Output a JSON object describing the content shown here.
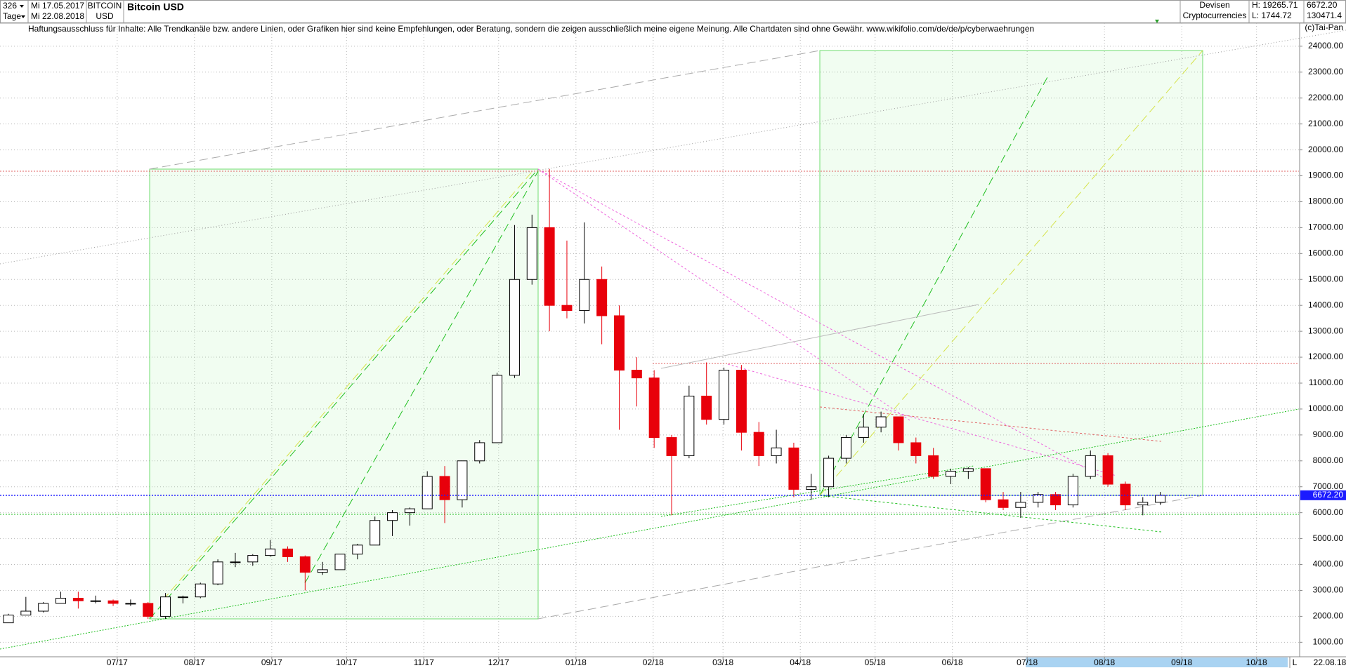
{
  "header": {
    "period": "326",
    "unit": "Tage",
    "date_from": "Mi 17.05.2017",
    "date_to": "Mi 22.08.2018",
    "symbol": "BITCOIN",
    "currency": "USD",
    "market": "Devisen",
    "group": "Cryptocurrencies",
    "high": "H: 19265.71",
    "low": "L: 1744.72",
    "volume": "130471.4",
    "disclaimer": "Haftungsausschluss für Inhalte: Alle Trendkanäle bzw. andere Linien, oder Grafiken hier sind keine Empfehlungen, oder Beratung, sondern die zeigen ausschließlich meine eigene Meinung. Alle Chartdaten sind ohne Gewähr.  www.wikifolio.com/de/de/p/cyberwaehrungen",
    "copyright": "(c)Tai-Pan",
    "end_date": "22.08.18",
    "scale_mode": "L"
  },
  "chart_data": {
    "type": "candlestick",
    "title": "Bitcoin USD",
    "x": [
      "2017-05-15",
      "2017-05-22",
      "2017-05-29",
      "2017-06-05",
      "2017-06-12",
      "2017-06-19",
      "2017-06-26",
      "2017-07-03",
      "2017-07-10",
      "2017-07-17",
      "2017-07-24",
      "2017-07-31",
      "2017-08-07",
      "2017-08-14",
      "2017-08-21",
      "2017-08-28",
      "2017-09-04",
      "2017-09-11",
      "2017-09-18",
      "2017-09-25",
      "2017-10-02",
      "2017-10-09",
      "2017-10-16",
      "2017-10-23",
      "2017-10-30",
      "2017-11-06",
      "2017-11-13",
      "2017-11-20",
      "2017-11-27",
      "2017-12-04",
      "2017-12-11",
      "2017-12-18",
      "2017-12-25",
      "2018-01-01",
      "2018-01-08",
      "2018-01-15",
      "2018-01-22",
      "2018-01-29",
      "2018-02-05",
      "2018-02-12",
      "2018-02-19",
      "2018-02-26",
      "2018-03-05",
      "2018-03-12",
      "2018-03-19",
      "2018-03-26",
      "2018-04-02",
      "2018-04-09",
      "2018-04-16",
      "2018-04-23",
      "2018-04-30",
      "2018-05-07",
      "2018-05-14",
      "2018-05-21",
      "2018-05-28",
      "2018-06-04",
      "2018-06-11",
      "2018-06-18",
      "2018-06-25",
      "2018-07-02",
      "2018-07-09",
      "2018-07-16",
      "2018-07-23",
      "2018-07-30",
      "2018-08-06",
      "2018-08-13",
      "2018-08-20"
    ],
    "open": [
      1750,
      2050,
      2200,
      2500,
      2700,
      2600,
      2600,
      2500,
      2500,
      2000,
      2750,
      2750,
      3250,
      4100,
      4100,
      4350,
      4600,
      4300,
      3700,
      3800,
      4400,
      4750,
      5700,
      6000,
      6150,
      7400,
      6500,
      8000,
      8700,
      11300,
      15000,
      17000,
      14000,
      13800,
      15000,
      13600,
      11500,
      11200,
      8900,
      8200,
      10500,
      9600,
      11500,
      9100,
      8200,
      8500,
      6900,
      7000,
      8100,
      8900,
      9300,
      9700,
      8700,
      8200,
      7400,
      7600,
      7700,
      6500,
      6200,
      6400,
      6700,
      6300,
      7400,
      8200,
      7100,
      6300,
      6400
    ],
    "high": [
      2100,
      2750,
      2550,
      2950,
      2950,
      2800,
      2650,
      2650,
      2550,
      2900,
      2800,
      3300,
      4200,
      4450,
      4400,
      4950,
      4700,
      4350,
      4100,
      4400,
      4800,
      5850,
      6100,
      6200,
      7600,
      7800,
      8000,
      8800,
      11400,
      17100,
      17500,
      19265.71,
      16500,
      17200,
      15500,
      14000,
      12000,
      11500,
      9000,
      10900,
      11800,
      11600,
      11700,
      9500,
      9200,
      8700,
      7500,
      8200,
      9000,
      9800,
      9900,
      9700,
      8900,
      8500,
      7700,
      7750,
      7700,
      6800,
      6800,
      6800,
      6800,
      7500,
      8400,
      8300,
      7200,
      6600,
      6800
    ],
    "low": [
      1744.72,
      2050,
      2150,
      2500,
      2300,
      2500,
      2400,
      2400,
      1900,
      1900,
      2500,
      2700,
      3200,
      3900,
      3950,
      4300,
      4100,
      3000,
      3600,
      3800,
      4200,
      4750,
      5100,
      5500,
      6150,
      5600,
      6200,
      7900,
      8700,
      11200,
      14800,
      13000,
      13500,
      13300,
      12500,
      9200,
      10100,
      8500,
      5900,
      8100,
      9400,
      9400,
      8400,
      7800,
      7900,
      6600,
      6500,
      6600,
      7900,
      8700,
      9100,
      8400,
      7900,
      7300,
      7100,
      7300,
      6400,
      6100,
      5800,
      6200,
      6100,
      6200,
      7300,
      7000,
      6100,
      5900,
      6300
    ],
    "close": [
      2050,
      2200,
      2500,
      2700,
      2600,
      2600,
      2500,
      2500,
      2000,
      2750,
      2750,
      3250,
      4100,
      4100,
      4350,
      4600,
      4300,
      3700,
      3800,
      4400,
      4750,
      5700,
      6000,
      6150,
      7400,
      6500,
      8000,
      8700,
      11300,
      15000,
      17000,
      14000,
      13800,
      15000,
      13600,
      11500,
      11200,
      8900,
      8200,
      10500,
      9600,
      11500,
      9100,
      8200,
      8500,
      6900,
      7000,
      8100,
      8900,
      9300,
      9700,
      8700,
      8200,
      7400,
      7600,
      7700,
      6500,
      6200,
      6400,
      6700,
      6300,
      7400,
      8200,
      7100,
      6300,
      6400,
      6672.2
    ],
    "up_color": "#000000",
    "down_color": "#e8000b",
    "last_price": {
      "value": 6672.2,
      "label": "6672.20"
    },
    "last_price_color": "#1a1aff",
    "xlim": [
      "2017-05-15",
      "2018-10-18"
    ],
    "xticks": [
      {
        "value": "2017-07-01",
        "label": "07/17"
      },
      {
        "value": "2017-08-01",
        "label": "08/17"
      },
      {
        "value": "2017-09-01",
        "label": "09/17"
      },
      {
        "value": "2017-10-01",
        "label": "10/17"
      },
      {
        "value": "2017-11-01",
        "label": "11/17"
      },
      {
        "value": "2017-12-01",
        "label": "12/17"
      },
      {
        "value": "2018-01-01",
        "label": "01/18"
      },
      {
        "value": "2018-02-01",
        "label": "02/18"
      },
      {
        "value": "2018-03-01",
        "label": "03/18"
      },
      {
        "value": "2018-04-01",
        "label": "04/18"
      },
      {
        "value": "2018-05-01",
        "label": "05/18"
      },
      {
        "value": "2018-06-01",
        "label": "06/18"
      },
      {
        "value": "2018-07-01",
        "label": "07/18"
      },
      {
        "value": "2018-08-01",
        "label": "08/18"
      },
      {
        "value": "2018-09-01",
        "label": "09/18"
      },
      {
        "value": "2018-10-01",
        "label": "10/18"
      }
    ],
    "ylim": [
      440,
      24890
    ],
    "yticks": [
      {
        "value": 1000,
        "label": "1000.00"
      },
      {
        "value": 2000,
        "label": "2000.00"
      },
      {
        "value": 3000,
        "label": "3000.00"
      },
      {
        "value": 4000,
        "label": "4000.00"
      },
      {
        "value": 5000,
        "label": "5000.00"
      },
      {
        "value": 6000,
        "label": "6000.00"
      },
      {
        "value": 7000,
        "label": "7000.00"
      },
      {
        "value": 8000,
        "label": "8000.00"
      },
      {
        "value": 9000,
        "label": "9000.00"
      },
      {
        "value": 10000,
        "label": "10000.00"
      },
      {
        "value": 11000,
        "label": "11000.00"
      },
      {
        "value": 12000,
        "label": "12000.00"
      },
      {
        "value": 13000,
        "label": "13000.00"
      },
      {
        "value": 14000,
        "label": "14000.00"
      },
      {
        "value": 15000,
        "label": "15000.00"
      },
      {
        "value": 16000,
        "label": "16000.00"
      },
      {
        "value": 17000,
        "label": "17000.00"
      },
      {
        "value": 18000,
        "label": "18000.00"
      },
      {
        "value": 19000,
        "label": "19000.00"
      },
      {
        "value": 20000,
        "label": "20000.00"
      },
      {
        "value": 21000,
        "label": "21000.00"
      },
      {
        "value": 22000,
        "label": "22000.00"
      },
      {
        "value": 23000,
        "label": "23000.00"
      },
      {
        "value": 24000,
        "label": "24000.00"
      }
    ],
    "grid": true
  }
}
